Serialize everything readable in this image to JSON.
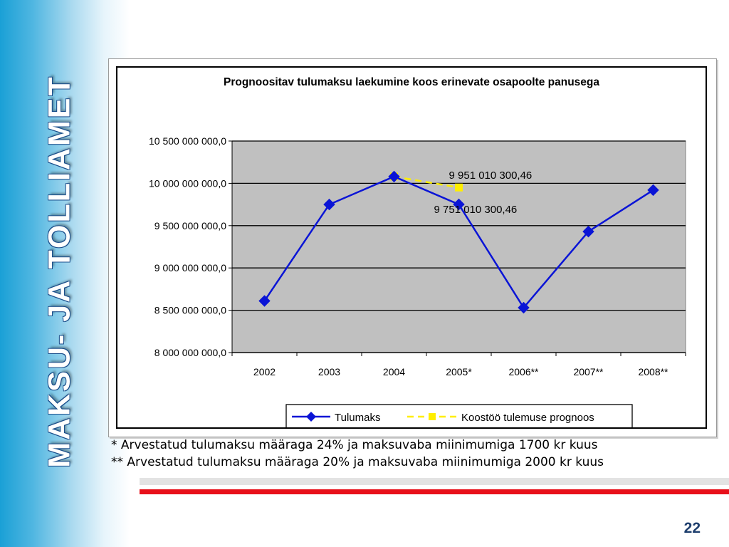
{
  "sidebar": {
    "title": "MAKSU- JA TOLLIAMET"
  },
  "chart_data": {
    "type": "line",
    "title": "Prognoositav tulumaksu laekumine koos erinevate osapoolte panusega",
    "categories": [
      "2002",
      "2003",
      "2004",
      "2005*",
      "2006**",
      "2007**",
      "2008**"
    ],
    "ylim": [
      8000000000,
      10500000000
    ],
    "yticks": [
      8000000000,
      8500000000,
      9000000000,
      9500000000,
      10000000000,
      10500000000
    ],
    "ytick_labels": [
      "8 000 000 000,0",
      "8 500 000 000,0",
      "9 000 000 000,0",
      "9 500 000 000,0",
      "10 000 000 000,0",
      "10 500 000 000,0"
    ],
    "grid": true,
    "legend_position": "bottom",
    "series": [
      {
        "name": "Tulumaks",
        "color": "#0a14d6",
        "marker": "diamond",
        "values": [
          8610000000,
          9750000000,
          10080000000,
          9751010300.46,
          8530000000,
          9430000000,
          9920000000
        ]
      },
      {
        "name": "Koostöö tulemuse prognoos",
        "color": "#ffee00",
        "marker": "square",
        "dashed": true,
        "values": [
          null,
          null,
          10080000000,
          9951010300.46,
          null,
          null,
          null
        ]
      }
    ],
    "data_labels": [
      {
        "text": "9 951 010 300,46",
        "series": 1,
        "index": 3
      },
      {
        "text": "9 751 010 300,46",
        "series": 0,
        "index": 3
      }
    ],
    "colors": {
      "plot_background": "#c0c0c0"
    }
  },
  "footnotes": {
    "note1": "*   Arvestatud tulumaksu määraga 24% ja maksuvaba miinimumiga 1700 kr kuus",
    "note2": "** Arvestatud tulumaksu määraga 20% ja maksuvaba miinimumiga 2000 kr kuus"
  },
  "page_number": "22"
}
